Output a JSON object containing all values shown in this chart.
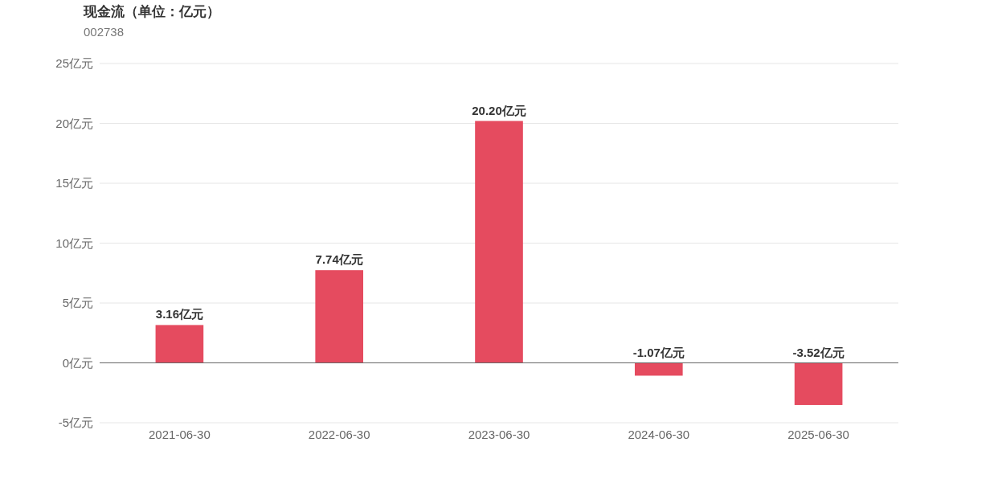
{
  "chart_data": {
    "type": "bar",
    "title": "现金流（单位：亿元）",
    "subtitle": "002738",
    "categories": [
      "2021-06-30",
      "2022-06-30",
      "2023-06-30",
      "2024-06-30",
      "2025-06-30"
    ],
    "values": [
      3.16,
      7.74,
      20.2,
      -1.07,
      -3.52
    ],
    "value_labels": [
      "3.16亿元",
      "7.74亿元",
      "20.20亿元",
      "-1.07亿元",
      "-3.52亿元"
    ],
    "color": "#e54b5f",
    "ylim": [
      -5,
      25
    ],
    "yticks": [
      {
        "value": -5,
        "label": "-5亿元"
      },
      {
        "value": 0,
        "label": "0亿元"
      },
      {
        "value": 5,
        "label": "5亿元"
      },
      {
        "value": 10,
        "label": "10亿元"
      },
      {
        "value": 15,
        "label": "15亿元"
      },
      {
        "value": 20,
        "label": "20亿元"
      },
      {
        "value": 25,
        "label": "25亿元"
      }
    ],
    "grid": "y"
  }
}
